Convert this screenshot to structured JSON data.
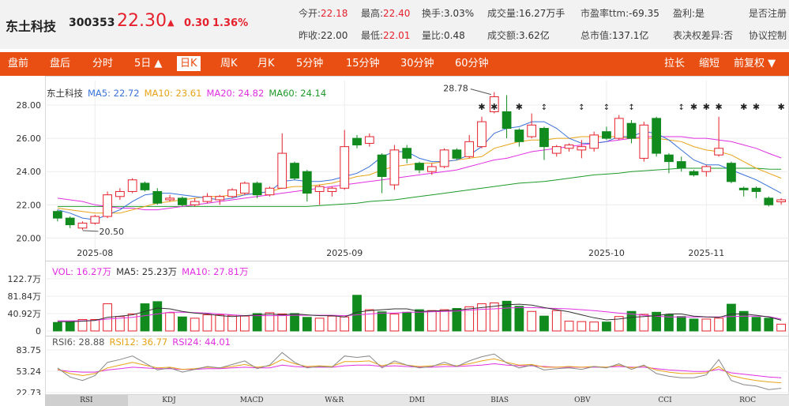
{
  "header": {
    "name": "东土科技",
    "code": "300353",
    "price": "22.30",
    "arrow": "▲",
    "change": "0.30",
    "change_pct": "1.36%",
    "stats_row1": [
      {
        "label": "今开:",
        "value": "22.18",
        "color": "red"
      },
      {
        "label": "最高:",
        "value": "22.40",
        "color": "red"
      },
      {
        "label": "换手:",
        "value": "3.03%",
        "color": ""
      },
      {
        "label": "成交量:",
        "value": "16.27万手",
        "color": ""
      },
      {
        "label": "市盈率ttm:",
        "value": "-69.35",
        "color": ""
      },
      {
        "label": "盈利:",
        "value": "是",
        "color": ""
      },
      {
        "label": "是否注册",
        "value": "",
        "color": ""
      }
    ],
    "stats_row2": [
      {
        "label": "昨收:",
        "value": "22.00",
        "color": ""
      },
      {
        "label": "最低:",
        "value": "22.01",
        "color": "red"
      },
      {
        "label": "量比:",
        "value": "0.48",
        "color": ""
      },
      {
        "label": "成交额:",
        "value": "3.62亿",
        "color": ""
      },
      {
        "label": "总市值:",
        "value": "137.1亿",
        "color": ""
      },
      {
        "label": "表决权差异:",
        "value": "否",
        "color": ""
      },
      {
        "label": "协议控制",
        "value": "",
        "color": ""
      }
    ]
  },
  "tabs": {
    "left": [
      {
        "label": "盘前",
        "active": false
      },
      {
        "label": "盘后",
        "active": false
      },
      {
        "label": "分时",
        "active": false
      },
      {
        "label": "5日 ▲",
        "active": false
      },
      {
        "label": "日K",
        "active": true
      },
      {
        "label": "周K",
        "active": false
      },
      {
        "label": "月K",
        "active": false
      },
      {
        "label": "5分钟",
        "active": false
      },
      {
        "label": "15分钟",
        "active": false
      },
      {
        "label": "30分钟",
        "active": false
      },
      {
        "label": "60分钟",
        "active": false
      }
    ],
    "right": [
      {
        "label": "拉长"
      },
      {
        "label": "缩短"
      },
      {
        "label": "前复权 ▼"
      }
    ]
  },
  "legend_main": [
    {
      "text": "东土科技",
      "color": "#333333"
    },
    {
      "text": "MA5: 22.72",
      "color": "#3a72d8"
    },
    {
      "text": "MA10: 23.61",
      "color": "#e8a317"
    },
    {
      "text": "MA20: 24.82",
      "color": "#e02fe0"
    },
    {
      "text": "MA60: 24.14",
      "color": "#1e9a2a"
    }
  ],
  "legend_vol": [
    {
      "text": "VOL: 16.27万",
      "color": "#e02fe0"
    },
    {
      "text": "MA5: 25.23万",
      "color": "#333333"
    },
    {
      "text": "MA10: 27.81万",
      "color": "#e02fe0"
    }
  ],
  "legend_rsi": [
    {
      "text": "RSI6: 28.88",
      "color": "#555555"
    },
    {
      "text": "RSI12: 36.77",
      "color": "#e8a317"
    },
    {
      "text": "RSI24: 44.01",
      "color": "#e02fe0"
    }
  ],
  "bottom_tabs": [
    {
      "label": "RSI",
      "active": true
    },
    {
      "label": "KDJ",
      "active": false
    },
    {
      "label": "MACD",
      "active": false
    },
    {
      "label": "W&R",
      "active": false
    },
    {
      "label": "DMI",
      "active": false
    },
    {
      "label": "BIAS",
      "active": false
    },
    {
      "label": "OBV",
      "active": false
    },
    {
      "label": "CCI",
      "active": false
    },
    {
      "label": "ROC",
      "active": false
    }
  ],
  "colors": {
    "up": "#e5212d",
    "down": "#118a1e",
    "accent": "#e94f12"
  },
  "chart_data": {
    "type": "candlestick",
    "y_ticks": [
      "28.00",
      "26.00",
      "24.00",
      "22.00",
      "20.00"
    ],
    "y_tick_values": [
      28,
      26,
      24,
      22,
      20
    ],
    "ylim": [
      19.4,
      29.0
    ],
    "x_ticks": [
      {
        "label": "2025-08",
        "index": 3
      },
      {
        "label": "2025-09",
        "index": 23
      },
      {
        "label": "2025-10",
        "index": 44
      },
      {
        "label": "2025-11",
        "index": 52
      }
    ],
    "annotations": [
      {
        "text": "28.78",
        "index": 35,
        "value": 28.78
      },
      {
        "text": "20.50",
        "index": 2,
        "value": 20.5
      }
    ],
    "markers": {
      "star_indices": [
        34,
        35,
        37,
        51,
        52,
        53,
        55,
        56,
        58
      ],
      "arrow_indices": [
        39,
        42,
        44,
        46,
        50
      ]
    },
    "candles": [
      [
        21.6,
        21.2,
        21.7,
        21.0
      ],
      [
        21.2,
        20.8,
        21.3,
        20.6
      ],
      [
        20.6,
        20.9,
        21.0,
        20.5
      ],
      [
        20.9,
        21.3,
        21.4,
        20.8
      ],
      [
        21.3,
        22.6,
        22.8,
        21.2
      ],
      [
        22.5,
        22.8,
        23.0,
        22.3
      ],
      [
        22.8,
        23.5,
        23.6,
        22.7
      ],
      [
        23.3,
        22.9,
        23.4,
        22.8
      ],
      [
        22.8,
        22.1,
        23.0,
        22.0
      ],
      [
        22.3,
        22.4,
        22.6,
        22.2
      ],
      [
        22.4,
        22.0,
        22.5,
        21.9
      ],
      [
        22.0,
        22.2,
        22.4,
        21.9
      ],
      [
        22.2,
        22.5,
        22.7,
        22.1
      ],
      [
        22.3,
        22.5,
        22.6,
        22.0
      ],
      [
        22.5,
        22.9,
        23.0,
        22.4
      ],
      [
        22.7,
        23.3,
        23.4,
        22.6
      ],
      [
        23.3,
        22.6,
        23.4,
        22.4
      ],
      [
        22.6,
        23.0,
        23.1,
        22.5
      ],
      [
        23.0,
        25.1,
        26.3,
        23.0
      ],
      [
        24.5,
        23.6,
        24.6,
        23.5
      ],
      [
        24.0,
        22.7,
        24.1,
        22.2
      ],
      [
        22.8,
        23.1,
        23.2,
        22.0
      ],
      [
        22.8,
        23.0,
        23.1,
        22.5
      ],
      [
        23.0,
        25.5,
        26.5,
        22.9
      ],
      [
        26.0,
        25.6,
        26.2,
        25.4
      ],
      [
        25.7,
        26.1,
        26.3,
        25.5
      ],
      [
        25.0,
        23.7,
        25.1,
        22.7
      ],
      [
        23.2,
        25.3,
        25.6,
        22.9
      ],
      [
        25.4,
        24.8,
        25.6,
        24.5
      ],
      [
        24.5,
        24.1,
        24.6,
        23.9
      ],
      [
        24.0,
        24.3,
        24.5,
        23.8
      ],
      [
        24.3,
        25.3,
        25.4,
        24.2
      ],
      [
        25.3,
        24.8,
        25.4,
        24.7
      ],
      [
        24.9,
        25.8,
        26.2,
        24.8
      ],
      [
        25.5,
        27.0,
        27.3,
        25.4
      ],
      [
        27.6,
        28.5,
        28.78,
        27.5
      ],
      [
        27.6,
        26.6,
        28.6,
        26.0
      ],
      [
        26.5,
        25.8,
        26.6,
        25.5
      ],
      [
        26.1,
        26.8,
        27.5,
        26.0
      ],
      [
        26.6,
        25.5,
        26.7,
        24.7
      ],
      [
        25.1,
        25.5,
        25.6,
        24.9
      ],
      [
        25.4,
        25.6,
        25.7,
        25.2
      ],
      [
        25.3,
        25.5,
        25.9,
        24.8
      ],
      [
        25.4,
        26.2,
        26.4,
        25.2
      ],
      [
        26.4,
        26.0,
        26.7,
        25.9
      ],
      [
        26.0,
        27.2,
        27.4,
        25.9
      ],
      [
        26.9,
        26.0,
        27.1,
        25.7
      ],
      [
        24.8,
        26.8,
        27.0,
        24.6
      ],
      [
        27.2,
        25.1,
        27.3,
        24.9
      ],
      [
        25.0,
        24.6,
        25.1,
        23.9
      ],
      [
        24.6,
        24.2,
        24.9,
        24.0
      ],
      [
        24.0,
        23.8,
        24.1,
        23.7
      ],
      [
        24.0,
        24.3,
        24.4,
        23.7
      ],
      [
        25.0,
        25.4,
        27.3,
        24.9
      ],
      [
        24.5,
        23.4,
        24.6,
        23.3
      ],
      [
        23.0,
        22.9,
        23.1,
        22.5
      ],
      [
        23.0,
        22.8,
        23.1,
        22.4
      ],
      [
        22.4,
        22.0,
        22.5,
        21.9
      ],
      [
        22.18,
        22.3,
        22.4,
        22.01
      ]
    ],
    "ma5": [
      21.7,
      21.5,
      21.2,
      21.1,
      21.4,
      21.7,
      22.2,
      22.6,
      22.7,
      22.7,
      22.6,
      22.5,
      22.4,
      22.3,
      22.4,
      22.6,
      22.7,
      22.8,
      23.4,
      23.5,
      23.4,
      23.4,
      23.5,
      23.7,
      23.9,
      24.3,
      24.9,
      25.2,
      25.2,
      24.8,
      24.6,
      24.6,
      24.7,
      25.0,
      25.5,
      26.3,
      26.6,
      26.7,
      27.0,
      27.0,
      26.6,
      26.0,
      25.7,
      25.7,
      25.8,
      26.1,
      26.1,
      26.4,
      26.3,
      25.9,
      25.3,
      24.7,
      24.4,
      24.4,
      24.1,
      23.8,
      23.5,
      23.1,
      22.7
    ],
    "ma10": [
      21.8,
      21.7,
      21.6,
      21.5,
      21.5,
      21.5,
      21.7,
      21.9,
      22.1,
      22.2,
      22.3,
      22.4,
      22.5,
      22.5,
      22.6,
      22.6,
      22.7,
      22.8,
      23.0,
      23.1,
      23.1,
      23.2,
      23.3,
      23.5,
      23.7,
      23.8,
      24.1,
      24.3,
      24.4,
      24.5,
      24.5,
      24.6,
      24.7,
      24.8,
      24.9,
      25.4,
      25.6,
      25.8,
      25.9,
      25.9,
      26.0,
      26.0,
      26.1,
      26.1,
      26.1,
      26.1,
      26.0,
      26.0,
      26.0,
      25.9,
      25.8,
      25.5,
      25.3,
      25.2,
      25.0,
      24.6,
      24.2,
      23.9,
      23.6
    ],
    "ma20": [
      22.4,
      22.3,
      22.2,
      22.0,
      21.9,
      21.8,
      21.8,
      21.7,
      21.7,
      21.8,
      21.9,
      22.0,
      22.1,
      22.2,
      22.3,
      22.4,
      22.5,
      22.6,
      22.7,
      22.8,
      22.9,
      23.0,
      23.1,
      23.2,
      23.3,
      23.4,
      23.5,
      23.6,
      23.7,
      23.8,
      23.9,
      24.0,
      24.1,
      24.3,
      24.5,
      24.7,
      24.8,
      25.0,
      25.2,
      25.3,
      25.4,
      25.5,
      25.6,
      25.7,
      25.8,
      25.9,
      26.0,
      26.1,
      26.1,
      26.1,
      26.1,
      26.0,
      26.0,
      25.9,
      25.8,
      25.6,
      25.4,
      25.1,
      24.82
    ],
    "ma60": [
      21.9,
      21.9,
      21.9,
      21.9,
      21.9,
      21.9,
      21.9,
      21.9,
      21.9,
      21.9,
      21.9,
      21.9,
      21.9,
      21.9,
      21.9,
      21.9,
      21.9,
      21.9,
      21.9,
      21.9,
      21.9,
      21.95,
      22.0,
      22.05,
      22.1,
      22.2,
      22.25,
      22.3,
      22.4,
      22.5,
      22.6,
      22.7,
      22.8,
      22.9,
      23.0,
      23.1,
      23.2,
      23.3,
      23.35,
      23.4,
      23.5,
      23.6,
      23.7,
      23.8,
      23.85,
      23.9,
      24.0,
      24.05,
      24.1,
      24.15,
      24.2,
      24.2,
      24.2,
      24.2,
      24.2,
      24.2,
      24.2,
      24.15,
      24.14
    ],
    "volume": {
      "y_ticks": [
        "122.7万",
        "81.84万",
        "40.92万",
        "0"
      ],
      "y_tick_values": [
        122.7,
        81.84,
        40.92,
        0
      ],
      "ylim": [
        0,
        122.7
      ],
      "values": [
        20,
        21,
        27,
        27,
        64,
        34,
        40,
        64,
        69,
        43,
        33,
        30,
        38,
        38,
        37,
        35,
        41,
        43,
        40,
        41,
        32,
        30,
        35,
        33,
        84,
        50,
        45,
        40,
        44,
        50,
        48,
        50,
        53,
        57,
        64,
        66,
        70,
        58,
        46,
        35,
        48,
        23,
        22,
        21,
        21,
        34,
        46,
        39,
        44,
        38,
        34,
        28,
        28,
        30,
        63,
        46,
        32,
        30,
        16
      ],
      "ma5": [
        22,
        22,
        23,
        25,
        32,
        35,
        38,
        46,
        54,
        52,
        46,
        42,
        40,
        36,
        34,
        36,
        38,
        40,
        38,
        40,
        38,
        36,
        36,
        33,
        44,
        48,
        50,
        52,
        52,
        46,
        47,
        48,
        49,
        52,
        55,
        58,
        62,
        63,
        61,
        55,
        50,
        45,
        38,
        31,
        26,
        28,
        32,
        34,
        36,
        40,
        40,
        35,
        33,
        32,
        40,
        40,
        37,
        33,
        25.23
      ],
      "ma10": [
        24,
        24,
        24,
        25,
        28,
        30,
        32,
        36,
        40,
        44,
        44,
        43,
        42,
        40,
        38,
        36,
        36,
        36,
        36,
        37,
        37,
        37,
        37,
        36,
        38,
        40,
        42,
        42,
        44,
        44,
        45,
        46,
        47,
        49,
        51,
        52,
        54,
        55,
        55,
        54,
        53,
        52,
        50,
        48,
        45,
        42,
        40,
        37,
        35,
        33,
        33,
        33,
        33,
        33,
        34,
        35,
        35,
        34,
        27.81
      ]
    },
    "rsi": {
      "y_ticks": [
        "83.75",
        "53.24",
        "22.73"
      ],
      "y_tick_values": [
        83.75,
        53.24,
        22.73
      ],
      "ylim": [
        22.73,
        83.75
      ],
      "rsi6": [
        58,
        45,
        40,
        47,
        66,
        70,
        75,
        65,
        55,
        58,
        52,
        56,
        60,
        58,
        63,
        68,
        57,
        62,
        80,
        66,
        58,
        60,
        59,
        75,
        73,
        75,
        58,
        68,
        62,
        58,
        60,
        66,
        60,
        68,
        74,
        78,
        65,
        58,
        62,
        55,
        57,
        58,
        56,
        60,
        58,
        64,
        56,
        62,
        50,
        46,
        44,
        44,
        48,
        70,
        40,
        34,
        32,
        27,
        28.88
      ],
      "rsi12": [
        56,
        50,
        47,
        50,
        58,
        62,
        66,
        62,
        58,
        59,
        56,
        57,
        59,
        58,
        60,
        63,
        59,
        61,
        70,
        64,
        60,
        61,
        60,
        67,
        67,
        68,
        61,
        65,
        62,
        60,
        61,
        63,
        61,
        64,
        68,
        71,
        66,
        62,
        63,
        59,
        59,
        60,
        59,
        60,
        59,
        62,
        58,
        61,
        55,
        52,
        50,
        50,
        51,
        60,
        47,
        43,
        40,
        38,
        36.77
      ],
      "rsi24": [
        55,
        53,
        52,
        52,
        55,
        57,
        59,
        58,
        57,
        57,
        56,
        56,
        57,
        57,
        58,
        59,
        58,
        58,
        62,
        60,
        59,
        59,
        59,
        61,
        62,
        62,
        60,
        61,
        60,
        59,
        59,
        60,
        60,
        61,
        62,
        64,
        62,
        61,
        61,
        60,
        59,
        59,
        59,
        59,
        59,
        60,
        59,
        59,
        57,
        55,
        54,
        53,
        53,
        56,
        51,
        49,
        47,
        45,
        44.01
      ]
    }
  }
}
